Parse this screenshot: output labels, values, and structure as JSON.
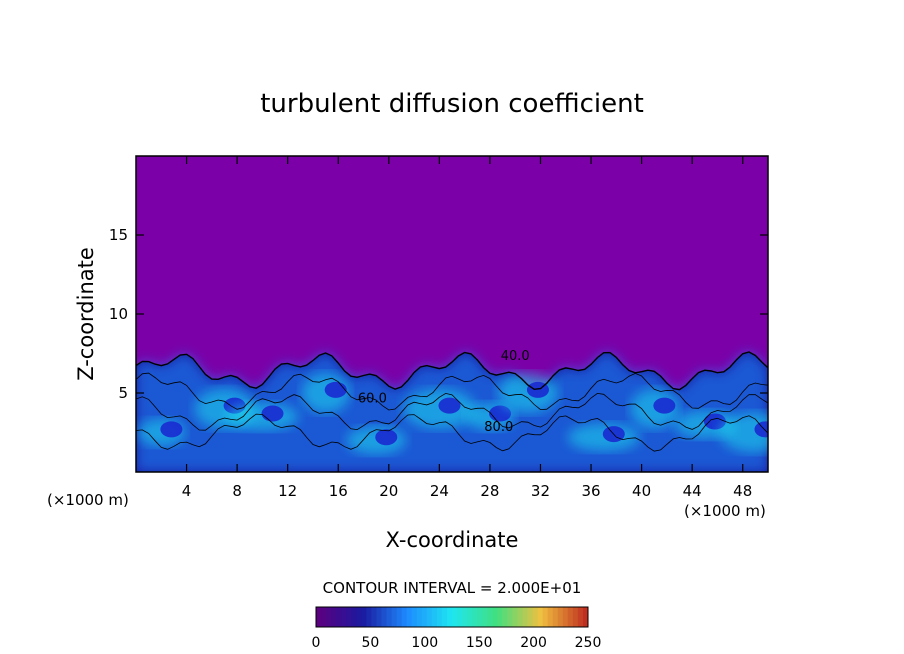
{
  "chart_data": {
    "type": "heatmap",
    "title": "turbulent diffusion coefficient",
    "xlabel": "X-coordinate",
    "ylabel": "Z-coordinate",
    "x_unit": "(×1000 m)",
    "z_unit": "(×1000 m)",
    "xlim": [
      0,
      50
    ],
    "ylim": [
      0,
      20
    ],
    "x_ticks": [
      4,
      8,
      12,
      16,
      20,
      24,
      28,
      32,
      36,
      40,
      44,
      48
    ],
    "y_ticks": [
      5,
      10,
      15
    ],
    "contour_interval_text": "CONTOUR INTERVAL = 2.000E+01",
    "contour_labels": [
      {
        "text": "40.0",
        "x": 30.0,
        "z": 7.1
      },
      {
        "text": "60.0",
        "x": 18.7,
        "z": 4.4
      },
      {
        "text": "80.0",
        "x": 28.7,
        "z": 2.6
      }
    ],
    "colorbar": {
      "min": 0,
      "max": 250,
      "tick_labels": [
        "0",
        "50",
        "100",
        "150",
        "200",
        "250"
      ]
    },
    "colors": {
      "background_field": "#7b00a8",
      "low": "#1a1aa0",
      "mid": "#1e8cff",
      "high": "#1ee6f0"
    }
  }
}
